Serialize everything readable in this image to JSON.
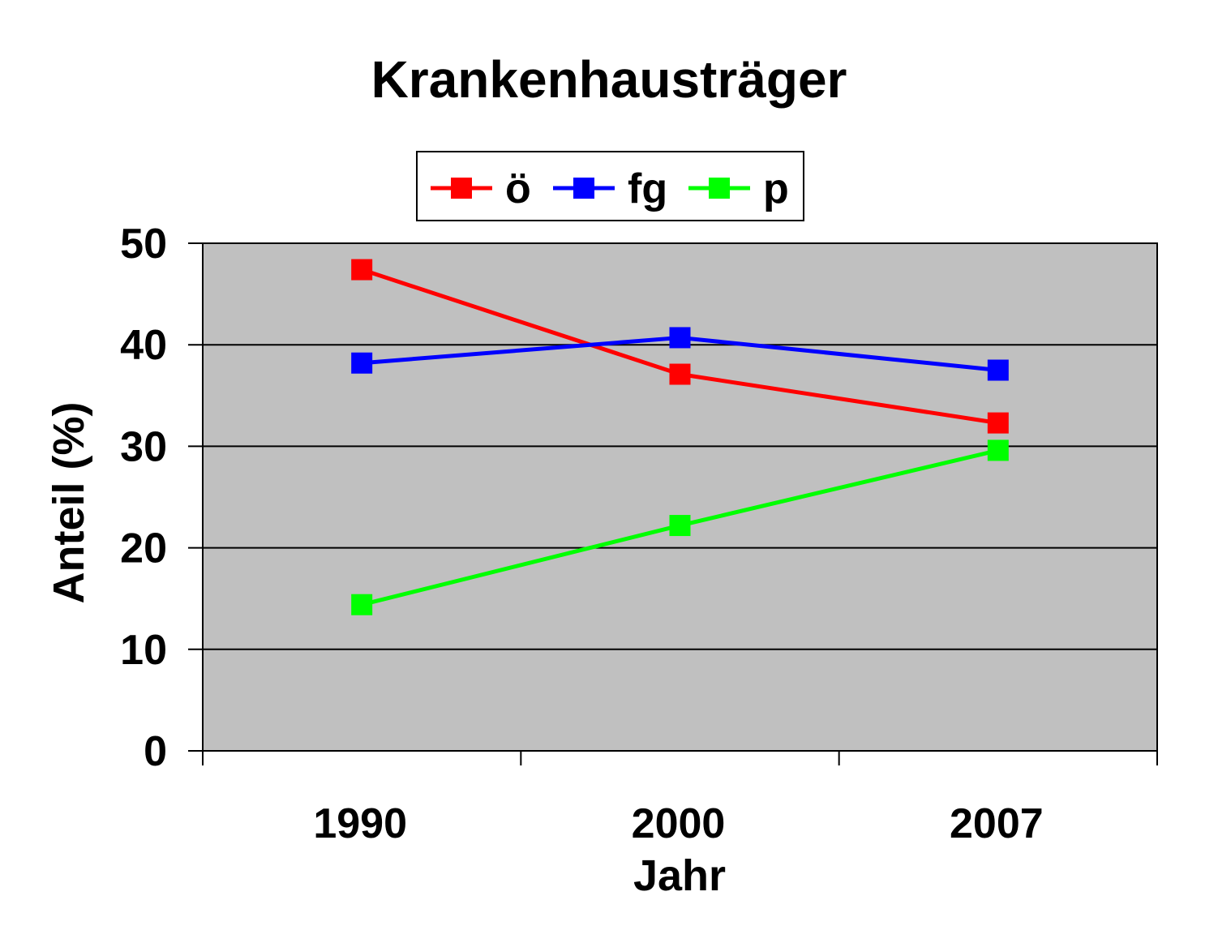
{
  "chart_data": {
    "type": "line",
    "title": "Krankenhausträger",
    "xlabel": "Jahr",
    "ylabel": "Anteil (%)",
    "categories": [
      "1990",
      "2000",
      "2007"
    ],
    "ylim": [
      0,
      50
    ],
    "yticks": [
      "0",
      "10",
      "20",
      "30",
      "40",
      "50"
    ],
    "grid": true,
    "legend": "top",
    "plot_background": "#C0C0C0",
    "series": [
      {
        "name": "ö",
        "color": "#FF0000",
        "values": [
          47.4,
          37.1,
          32.3
        ]
      },
      {
        "name": "fg",
        "color": "#0000FF",
        "values": [
          38.2,
          40.7,
          37.5
        ]
      },
      {
        "name": "p",
        "color": "#00FF00",
        "values": [
          14.4,
          22.2,
          29.6
        ]
      }
    ]
  }
}
